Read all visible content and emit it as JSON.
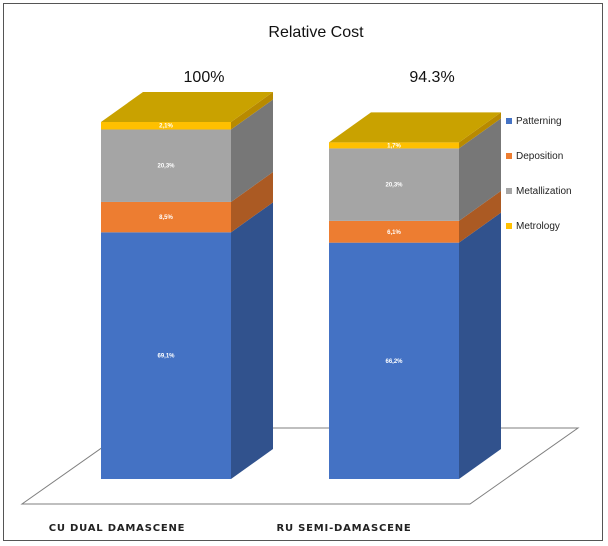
{
  "chart_data": {
    "type": "bar",
    "stacked": true,
    "title": "Relative Cost",
    "categories": [
      "CU DUAL DAMASCENE",
      "RU SEMI-DAMASCENE"
    ],
    "totals": [
      "100%",
      "94.3%"
    ],
    "ylim": [
      0,
      100
    ],
    "series": [
      {
        "name": "Patterning",
        "color": "#4472C4",
        "values": [
          69.1,
          66.2
        ],
        "labels": [
          "69,1%",
          "66,2%"
        ]
      },
      {
        "name": "Deposition",
        "color": "#ED7D31",
        "values": [
          8.5,
          6.1
        ],
        "labels": [
          "8,5%",
          "6,1%"
        ]
      },
      {
        "name": "Metallization",
        "color": "#A5A5A5",
        "values": [
          20.3,
          20.3
        ],
        "labels": [
          "20,3%",
          "20,3%"
        ]
      },
      {
        "name": "Metrology",
        "color": "#FFC000",
        "values": [
          2.1,
          1.7
        ],
        "labels": [
          "2,1%",
          "1,7%"
        ]
      }
    ],
    "legend_position": "right",
    "grid": false,
    "top_color": "#C9A200"
  }
}
